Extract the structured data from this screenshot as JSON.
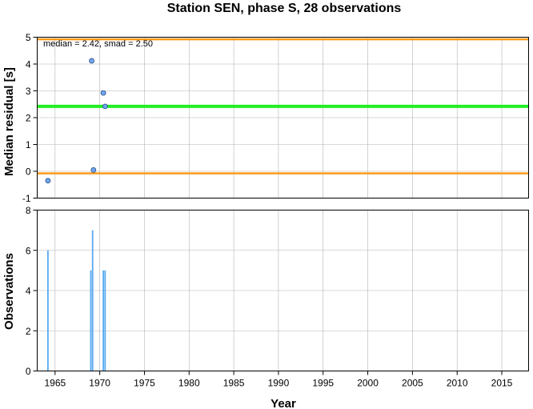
{
  "chart_data": [
    {
      "type": "scatter",
      "title": "Station SEN, phase S, 28 observations",
      "xlabel": "",
      "ylabel": "Median residual [s]",
      "xlim": [
        1963,
        2018
      ],
      "ylim": [
        -1,
        5
      ],
      "yticks": [
        "-1",
        "0",
        "1",
        "2",
        "3",
        "4",
        "5"
      ],
      "grid": true,
      "annotation": "median = 2.42, smad = 2.50",
      "colors": {
        "points": "#6fa8f0",
        "median_line": "#22ee22",
        "bound_lines": "#ff9a1a"
      },
      "median": 2.42,
      "upper_bound": 4.92,
      "lower_bound": -0.08,
      "points": [
        {
          "x": 1964.2,
          "y": -0.35
        },
        {
          "x": 1969.1,
          "y": 4.12
        },
        {
          "x": 1969.3,
          "y": 0.05
        },
        {
          "x": 1970.4,
          "y": 2.92
        },
        {
          "x": 1970.6,
          "y": 2.42
        }
      ]
    },
    {
      "type": "bar",
      "xlabel": "Year",
      "ylabel": "Observations",
      "xlim": [
        1963,
        2018
      ],
      "ylim": [
        0,
        8
      ],
      "yticks": [
        "0",
        "2",
        "4",
        "6",
        "8"
      ],
      "xticks": [
        "1965",
        "1970",
        "1975",
        "1980",
        "1985",
        "1990",
        "1995",
        "2000",
        "2005",
        "2010",
        "2015"
      ],
      "grid": true,
      "colors": {
        "bars": "#5aaaf0"
      },
      "bars": [
        {
          "x": 1964.2,
          "value": 6
        },
        {
          "x": 1969.0,
          "value": 5
        },
        {
          "x": 1969.2,
          "value": 7
        },
        {
          "x": 1970.4,
          "value": 5
        },
        {
          "x": 1970.6,
          "value": 5
        }
      ]
    }
  ]
}
